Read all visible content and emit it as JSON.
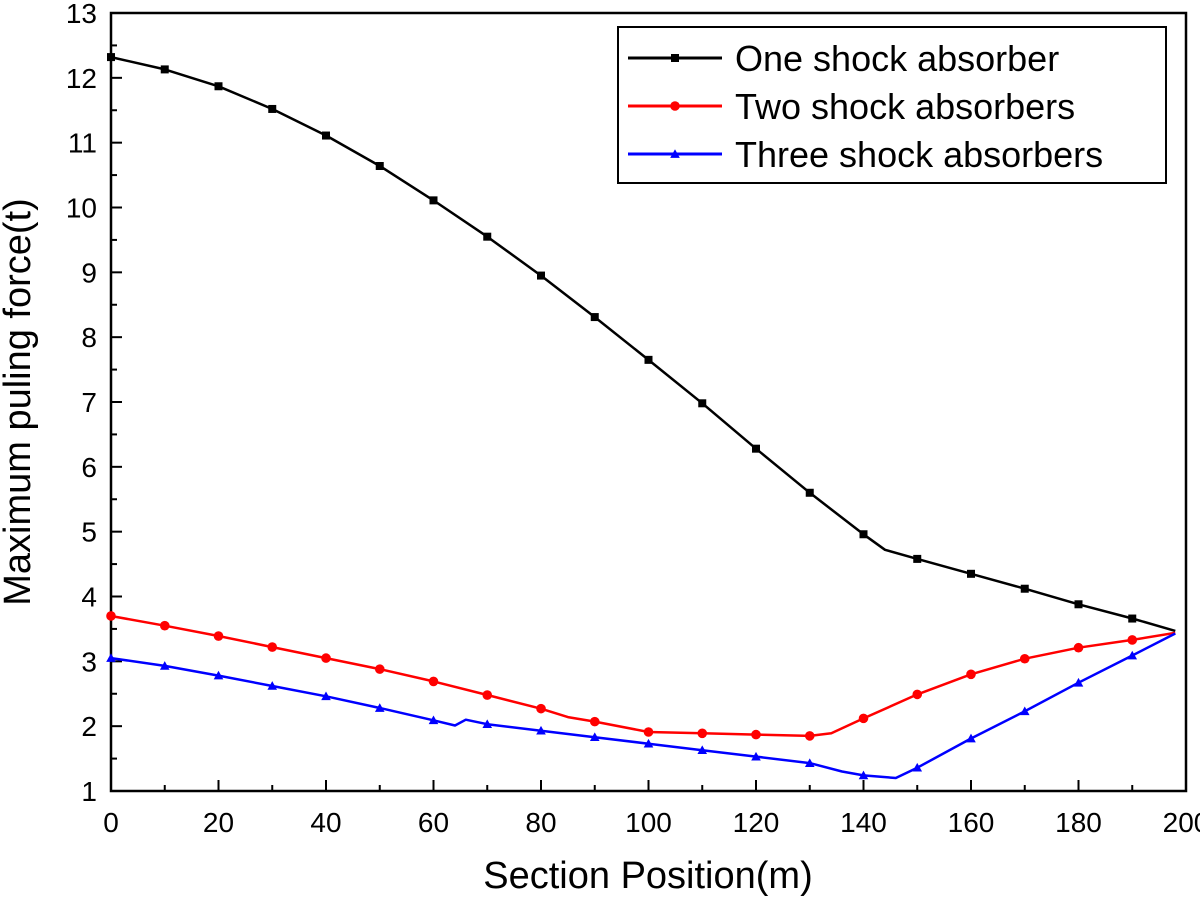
{
  "chart_data": {
    "type": "line",
    "title": "",
    "xlabel": "Section Position(m)",
    "ylabel": "Maximum puling force(t)",
    "xlim": [
      0,
      200
    ],
    "ylim": [
      1,
      13
    ],
    "x_ticks": [
      0,
      20,
      40,
      60,
      80,
      100,
      120,
      140,
      160,
      180,
      200
    ],
    "y_ticks": [
      1,
      2,
      3,
      4,
      5,
      6,
      7,
      8,
      9,
      10,
      11,
      12,
      13
    ],
    "grid": false,
    "legend_position": "top-right",
    "series": [
      {
        "name": "One shock absorber",
        "color": "#000000",
        "marker": "square",
        "points": [
          [
            0,
            12.32
          ],
          [
            10,
            12.13
          ],
          [
            20,
            11.87
          ],
          [
            30,
            11.52
          ],
          [
            40,
            11.11
          ],
          [
            50,
            10.64
          ],
          [
            60,
            10.11
          ],
          [
            70,
            9.55
          ],
          [
            80,
            8.95
          ],
          [
            90,
            8.31
          ],
          [
            100,
            7.65
          ],
          [
            110,
            6.98
          ],
          [
            120,
            6.28
          ],
          [
            130,
            5.6
          ],
          [
            140,
            4.96
          ],
          [
            144,
            4.72
          ],
          [
            150,
            4.58
          ],
          [
            160,
            4.35
          ],
          [
            170,
            4.12
          ],
          [
            180,
            3.88
          ],
          [
            190,
            3.66
          ],
          [
            198,
            3.47
          ]
        ],
        "markers_x": [
          0,
          10,
          20,
          30,
          40,
          50,
          60,
          70,
          80,
          90,
          100,
          110,
          120,
          130,
          140,
          150,
          160,
          170,
          180,
          190
        ]
      },
      {
        "name": "Two shock absorbers",
        "color": "#ff0000",
        "marker": "circle",
        "points": [
          [
            0,
            3.7
          ],
          [
            10,
            3.55
          ],
          [
            20,
            3.39
          ],
          [
            30,
            3.22
          ],
          [
            40,
            3.05
          ],
          [
            50,
            2.88
          ],
          [
            60,
            2.69
          ],
          [
            70,
            2.48
          ],
          [
            80,
            2.27
          ],
          [
            85,
            2.14
          ],
          [
            90,
            2.07
          ],
          [
            100,
            1.91
          ],
          [
            110,
            1.89
          ],
          [
            120,
            1.87
          ],
          [
            130,
            1.85
          ],
          [
            134,
            1.89
          ],
          [
            140,
            2.12
          ],
          [
            150,
            2.49
          ],
          [
            160,
            2.8
          ],
          [
            170,
            3.04
          ],
          [
            180,
            3.21
          ],
          [
            190,
            3.33
          ],
          [
            198,
            3.44
          ]
        ],
        "markers_x": [
          0,
          10,
          20,
          30,
          40,
          50,
          60,
          70,
          80,
          90,
          100,
          110,
          120,
          130,
          140,
          150,
          160,
          170,
          180,
          190
        ]
      },
      {
        "name": "Three shock absorbers",
        "color": "#0000ff",
        "marker": "triangle",
        "points": [
          [
            0,
            3.05
          ],
          [
            10,
            2.93
          ],
          [
            20,
            2.78
          ],
          [
            30,
            2.62
          ],
          [
            40,
            2.46
          ],
          [
            50,
            2.28
          ],
          [
            60,
            2.09
          ],
          [
            64,
            2.01
          ],
          [
            66,
            2.1
          ],
          [
            70,
            2.03
          ],
          [
            80,
            1.93
          ],
          [
            90,
            1.83
          ],
          [
            100,
            1.73
          ],
          [
            110,
            1.63
          ],
          [
            120,
            1.53
          ],
          [
            130,
            1.43
          ],
          [
            136,
            1.3
          ],
          [
            140,
            1.24
          ],
          [
            146,
            1.2
          ],
          [
            150,
            1.36
          ],
          [
            160,
            1.81
          ],
          [
            170,
            2.23
          ],
          [
            180,
            2.67
          ],
          [
            190,
            3.09
          ],
          [
            198,
            3.43
          ]
        ],
        "markers_x": [
          0,
          10,
          20,
          30,
          40,
          50,
          60,
          70,
          80,
          90,
          100,
          110,
          120,
          130,
          140,
          150,
          160,
          170,
          180,
          190
        ]
      }
    ]
  }
}
